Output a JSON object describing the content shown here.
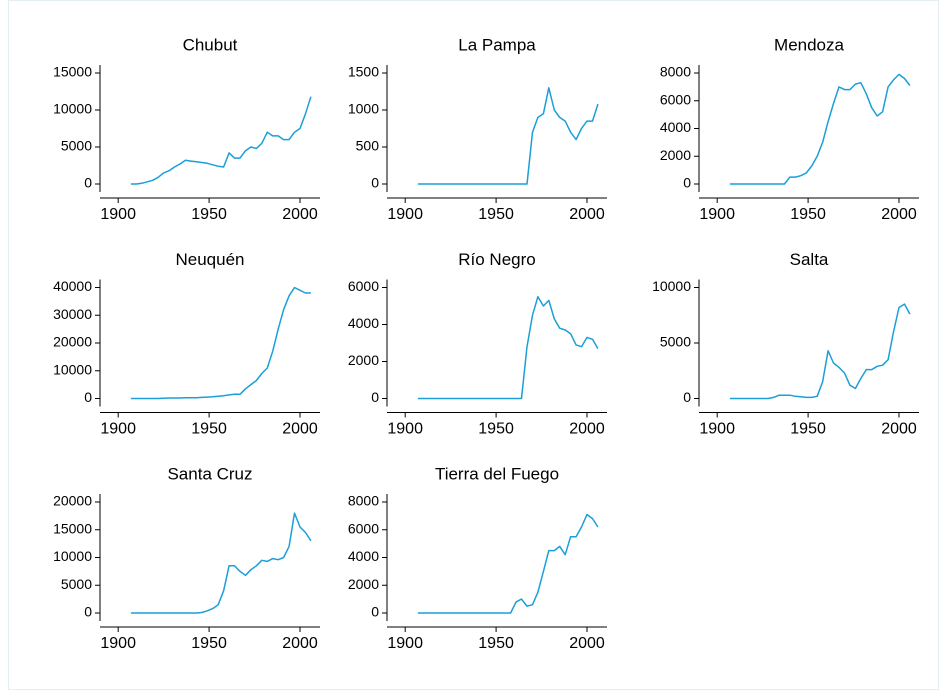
{
  "chart_data": [
    {
      "type": "line",
      "title": "Chubut",
      "color": "#1a9fd9",
      "x": [
        1907,
        1910,
        1913,
        1916,
        1919,
        1922,
        1925,
        1928,
        1931,
        1934,
        1937,
        1940,
        1943,
        1946,
        1949,
        1952,
        1955,
        1958,
        1961,
        1964,
        1967,
        1970,
        1973,
        1976,
        1979,
        1982,
        1985,
        1988,
        1991,
        1994,
        1997,
        2000,
        2003,
        2006
      ],
      "values": [
        0,
        0,
        100,
        300,
        500,
        900,
        1500,
        1800,
        2300,
        2700,
        3200,
        3100,
        3000,
        2900,
        2800,
        2600,
        2400,
        2300,
        4200,
        3500,
        3500,
        4500,
        5000,
        4800,
        5500,
        7000,
        6500,
        6500,
        6000,
        6000,
        7000,
        7500,
        9500,
        11800
      ],
      "xlim": [
        1890,
        2011
      ],
      "xticks": [
        1900,
        1950,
        2000
      ],
      "ylim": [
        -1080,
        16080
      ],
      "yticks": [
        0,
        5000,
        10000,
        15000
      ]
    },
    {
      "type": "line",
      "title": "La Pampa",
      "color": "#1a9fd9",
      "x": [
        1907,
        1910,
        1913,
        1916,
        1919,
        1922,
        1925,
        1928,
        1931,
        1934,
        1937,
        1940,
        1943,
        1946,
        1949,
        1952,
        1955,
        1958,
        1961,
        1964,
        1967,
        1970,
        1973,
        1976,
        1979,
        1982,
        1985,
        1988,
        1991,
        1994,
        1997,
        2000,
        2003,
        2006
      ],
      "values": [
        0,
        0,
        0,
        0,
        0,
        0,
        0,
        0,
        0,
        0,
        0,
        0,
        0,
        0,
        0,
        0,
        0,
        0,
        0,
        0,
        0,
        700,
        900,
        950,
        1300,
        1000,
        900,
        850,
        700,
        600,
        750,
        850,
        850,
        1080
      ],
      "xlim": [
        1890,
        2011
      ],
      "xticks": [
        1900,
        1950,
        2000
      ],
      "ylim": [
        -108,
        1608
      ],
      "yticks": [
        0,
        500,
        1000,
        1500
      ]
    },
    {
      "type": "line",
      "title": "Mendoza",
      "color": "#1a9fd9",
      "x": [
        1907,
        1910,
        1913,
        1916,
        1919,
        1922,
        1925,
        1928,
        1931,
        1934,
        1937,
        1940,
        1943,
        1946,
        1949,
        1952,
        1955,
        1958,
        1961,
        1964,
        1967,
        1970,
        1973,
        1976,
        1979,
        1982,
        1985,
        1988,
        1991,
        1994,
        1997,
        2000,
        2003,
        2006
      ],
      "values": [
        0,
        0,
        0,
        0,
        0,
        0,
        0,
        0,
        0,
        0,
        0,
        500,
        500,
        600,
        800,
        1300,
        2000,
        3000,
        4500,
        5800,
        7000,
        6800,
        6800,
        7200,
        7300,
        6500,
        5500,
        4900,
        5200,
        7000,
        7500,
        7900,
        7600,
        7100
      ],
      "xlim": [
        1890,
        2011
      ],
      "xticks": [
        1900,
        1950,
        2000
      ],
      "ylim": [
        -576,
        8576
      ],
      "yticks": [
        0,
        2000,
        4000,
        6000,
        8000
      ]
    },
    {
      "type": "line",
      "title": "Neuquén",
      "color": "#1a9fd9",
      "x": [
        1907,
        1910,
        1913,
        1916,
        1919,
        1922,
        1925,
        1928,
        1931,
        1934,
        1937,
        1940,
        1943,
        1946,
        1949,
        1952,
        1955,
        1958,
        1961,
        1964,
        1967,
        1970,
        1973,
        1976,
        1979,
        1982,
        1985,
        1988,
        1991,
        1994,
        1997,
        2000,
        2003,
        2006
      ],
      "values": [
        0,
        0,
        0,
        0,
        0,
        0,
        100,
        200,
        200,
        200,
        300,
        300,
        300,
        400,
        500,
        600,
        800,
        1000,
        1300,
        1500,
        1500,
        3500,
        5000,
        6500,
        9000,
        11000,
        17000,
        25000,
        32000,
        37000,
        40000,
        39000,
        38000,
        38000
      ],
      "xlim": [
        1890,
        2011
      ],
      "xticks": [
        1900,
        1950,
        2000
      ],
      "ylim": [
        -2880,
        42880
      ],
      "yticks": [
        0,
        10000,
        20000,
        30000,
        40000
      ]
    },
    {
      "type": "line",
      "title": "Río Negro",
      "color": "#1a9fd9",
      "x": [
        1907,
        1910,
        1913,
        1916,
        1919,
        1922,
        1925,
        1928,
        1931,
        1934,
        1937,
        1940,
        1943,
        1946,
        1949,
        1952,
        1955,
        1958,
        1961,
        1964,
        1967,
        1970,
        1973,
        1976,
        1979,
        1982,
        1985,
        1988,
        1991,
        1994,
        1997,
        2000,
        2003,
        2006
      ],
      "values": [
        0,
        0,
        0,
        0,
        0,
        0,
        0,
        0,
        0,
        0,
        0,
        0,
        0,
        0,
        0,
        0,
        0,
        0,
        0,
        0,
        2800,
        4500,
        5500,
        5000,
        5300,
        4300,
        3800,
        3700,
        3500,
        2900,
        2800,
        3300,
        3200,
        2700
      ],
      "xlim": [
        1890,
        2011
      ],
      "xticks": [
        1900,
        1950,
        2000
      ],
      "ylim": [
        -432,
        6432
      ],
      "yticks": [
        0,
        2000,
        4000,
        6000
      ]
    },
    {
      "type": "line",
      "title": "Salta",
      "color": "#1a9fd9",
      "x": [
        1907,
        1910,
        1913,
        1916,
        1919,
        1922,
        1925,
        1928,
        1931,
        1934,
        1937,
        1940,
        1943,
        1946,
        1949,
        1952,
        1955,
        1958,
        1961,
        1964,
        1967,
        1970,
        1973,
        1976,
        1979,
        1982,
        1985,
        1988,
        1991,
        1994,
        1997,
        2000,
        2003,
        2006
      ],
      "values": [
        0,
        0,
        0,
        0,
        0,
        0,
        0,
        0,
        100,
        300,
        300,
        300,
        200,
        150,
        100,
        100,
        200,
        1500,
        4300,
        3200,
        2800,
        2300,
        1200,
        900,
        1800,
        2600,
        2600,
        2900,
        3000,
        3500,
        6000,
        8200,
        8500,
        7600
      ],
      "xlim": [
        1890,
        2011
      ],
      "xticks": [
        1900,
        1950,
        2000
      ],
      "ylim": [
        -720,
        10720
      ],
      "yticks": [
        0,
        5000,
        10000
      ]
    },
    {
      "type": "line",
      "title": "Santa Cruz",
      "color": "#1a9fd9",
      "x": [
        1907,
        1910,
        1913,
        1916,
        1919,
        1922,
        1925,
        1928,
        1931,
        1934,
        1937,
        1940,
        1943,
        1946,
        1949,
        1952,
        1955,
        1958,
        1961,
        1964,
        1967,
        1970,
        1973,
        1976,
        1979,
        1982,
        1985,
        1988,
        1991,
        1994,
        1997,
        2000,
        2003,
        2006
      ],
      "values": [
        0,
        0,
        0,
        0,
        0,
        0,
        0,
        0,
        0,
        0,
        0,
        0,
        0,
        100,
        400,
        800,
        1500,
        4000,
        8500,
        8500,
        7500,
        6800,
        7800,
        8500,
        9500,
        9300,
        9800,
        9600,
        10000,
        12000,
        18000,
        15500,
        14500,
        13000
      ],
      "xlim": [
        1890,
        2011
      ],
      "xticks": [
        1900,
        1950,
        2000
      ],
      "ylim": [
        -1440,
        21440
      ],
      "yticks": [
        0,
        5000,
        10000,
        15000,
        20000
      ]
    },
    {
      "type": "line",
      "title": "Tierra del Fuego",
      "color": "#1a9fd9",
      "x": [
        1907,
        1910,
        1913,
        1916,
        1919,
        1922,
        1925,
        1928,
        1931,
        1934,
        1937,
        1940,
        1943,
        1946,
        1949,
        1952,
        1955,
        1958,
        1961,
        1964,
        1967,
        1970,
        1973,
        1976,
        1979,
        1982,
        1985,
        1988,
        1991,
        1994,
        1997,
        2000,
        2003,
        2006
      ],
      "values": [
        0,
        0,
        0,
        0,
        0,
        0,
        0,
        0,
        0,
        0,
        0,
        0,
        0,
        0,
        0,
        0,
        0,
        0,
        800,
        1000,
        500,
        600,
        1500,
        3000,
        4500,
        4500,
        4800,
        4200,
        5500,
        5500,
        6200,
        7100,
        6800,
        6200
      ],
      "xlim": [
        1890,
        2011
      ],
      "xticks": [
        1900,
        1950,
        2000
      ],
      "ylim": [
        -576,
        8576
      ],
      "yticks": [
        0,
        2000,
        4000,
        6000,
        8000
      ]
    }
  ]
}
